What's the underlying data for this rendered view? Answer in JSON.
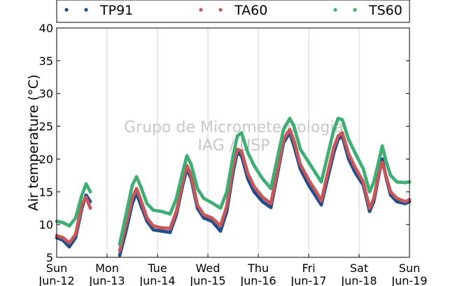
{
  "chart_data": {
    "type": "scatter",
    "title": "",
    "xlabel": "",
    "ylabel": "Air temperature (°C)",
    "ylim": [
      5,
      40
    ],
    "yticks": [
      5,
      10,
      15,
      20,
      25,
      30,
      35,
      40
    ],
    "xlim": [
      "2016-06-12T00:00",
      "2016-06-19T00:00"
    ],
    "xtick_labels": [
      {
        "top": "Sun",
        "bottom": "Jun-12"
      },
      {
        "top": "Mon",
        "bottom": "Jun-13"
      },
      {
        "top": "Tue",
        "bottom": "Jun-14"
      },
      {
        "top": "Wed",
        "bottom": "Jun-15"
      },
      {
        "top": "Thu",
        "bottom": "Jun-16"
      },
      {
        "top": "Fri",
        "bottom": "Jun-17"
      },
      {
        "top": "Sat",
        "bottom": "Jun-18"
      },
      {
        "top": "Sun",
        "bottom": "Jun-19"
      }
    ],
    "grid": {
      "vertical": true,
      "horizontal": false
    },
    "legend": {
      "placement": "top",
      "columns": 3
    },
    "watermark": {
      "line1": "Grupo de Micrometeorologia",
      "line2": "IAG / USP"
    },
    "series": [
      {
        "name": "TP91",
        "color": "#1f4e8c",
        "points": [
          [
            "2016-06-12T00:00",
            8.0
          ],
          [
            "2016-06-12T03:00",
            7.6
          ],
          [
            "2016-06-12T06:00",
            6.6
          ],
          [
            "2016-06-12T09:00",
            8.0
          ],
          [
            "2016-06-12T12:00",
            12.5
          ],
          [
            "2016-06-12T14:00",
            14.5
          ],
          [
            "2016-06-12T16:00",
            13.5
          ],
          [
            "2016-06-13T06:00",
            5.3
          ],
          [
            "2016-06-13T09:00",
            9.0
          ],
          [
            "2016-06-13T12:00",
            13.2
          ],
          [
            "2016-06-13T14:00",
            14.8
          ],
          [
            "2016-06-13T16:00",
            13.0
          ],
          [
            "2016-06-13T19:00",
            10.5
          ],
          [
            "2016-06-13T22:00",
            9.2
          ],
          [
            "2016-06-14T02:00",
            9.0
          ],
          [
            "2016-06-14T06:00",
            8.8
          ],
          [
            "2016-06-14T09:00",
            11.5
          ],
          [
            "2016-06-14T12:00",
            16.0
          ],
          [
            "2016-06-14T14:00",
            18.5
          ],
          [
            "2016-06-14T16:00",
            17.0
          ],
          [
            "2016-06-14T19:00",
            12.5
          ],
          [
            "2016-06-14T22:00",
            11.0
          ],
          [
            "2016-06-15T02:00",
            10.5
          ],
          [
            "2016-06-15T06:00",
            9.0
          ],
          [
            "2016-06-15T09:00",
            12.0
          ],
          [
            "2016-06-15T12:00",
            18.0
          ],
          [
            "2016-06-15T14:00",
            21.0
          ],
          [
            "2016-06-15T16:00",
            20.5
          ],
          [
            "2016-06-15T19:00",
            17.0
          ],
          [
            "2016-06-15T22:00",
            15.0
          ],
          [
            "2016-06-16T02:00",
            13.5
          ],
          [
            "2016-06-16T06:00",
            12.6
          ],
          [
            "2016-06-16T09:00",
            17.5
          ],
          [
            "2016-06-16T12:00",
            22.5
          ],
          [
            "2016-06-16T15:00",
            24.0
          ],
          [
            "2016-06-16T17:00",
            22.0
          ],
          [
            "2016-06-16T20:00",
            18.5
          ],
          [
            "2016-06-17T00:00",
            16.0
          ],
          [
            "2016-06-17T04:00",
            14.0
          ],
          [
            "2016-06-17T06:00",
            13.0
          ],
          [
            "2016-06-17T09:00",
            17.0
          ],
          [
            "2016-06-17T12:00",
            21.0
          ],
          [
            "2016-06-17T14:00",
            23.0
          ],
          [
            "2016-06-17T16:00",
            23.5
          ],
          [
            "2016-06-17T19:00",
            20.0
          ],
          [
            "2016-06-17T22:00",
            18.0
          ],
          [
            "2016-06-18T02:00",
            16.0
          ],
          [
            "2016-06-18T05:00",
            12.0
          ],
          [
            "2016-06-18T07:00",
            13.5
          ],
          [
            "2016-06-18T10:00",
            18.5
          ],
          [
            "2016-06-18T11:00",
            20.0
          ],
          [
            "2016-06-18T13:00",
            17.0
          ],
          [
            "2016-06-18T15:00",
            14.5
          ],
          [
            "2016-06-18T18:00",
            13.5
          ],
          [
            "2016-06-18T22:00",
            13.2
          ],
          [
            "2016-06-19T00:00",
            13.5
          ]
        ]
      },
      {
        "name": "TA60",
        "color": "#c8575a",
        "points": [
          [
            "2016-06-12T00:00",
            8.3
          ],
          [
            "2016-06-12T03:00",
            8.0
          ],
          [
            "2016-06-12T06:00",
            7.2
          ],
          [
            "2016-06-12T09:00",
            8.5
          ],
          [
            "2016-06-12T12:00",
            13.0
          ],
          [
            "2016-06-12T14:00",
            14.2
          ],
          [
            "2016-06-12T16:00",
            12.5
          ],
          [
            "2016-06-13T06:00",
            6.0
          ],
          [
            "2016-06-13T09:00",
            10.0
          ],
          [
            "2016-06-13T12:00",
            14.0
          ],
          [
            "2016-06-13T14:00",
            15.5
          ],
          [
            "2016-06-13T16:00",
            13.8
          ],
          [
            "2016-06-13T19:00",
            11.0
          ],
          [
            "2016-06-13T22:00",
            9.8
          ],
          [
            "2016-06-14T02:00",
            9.5
          ],
          [
            "2016-06-14T06:00",
            9.4
          ],
          [
            "2016-06-14T09:00",
            12.0
          ],
          [
            "2016-06-14T12:00",
            16.5
          ],
          [
            "2016-06-14T14:00",
            19.0
          ],
          [
            "2016-06-14T16:00",
            17.5
          ],
          [
            "2016-06-14T19:00",
            13.0
          ],
          [
            "2016-06-14T22:00",
            11.5
          ],
          [
            "2016-06-15T02:00",
            11.0
          ],
          [
            "2016-06-15T06:00",
            9.8
          ],
          [
            "2016-06-15T09:00",
            12.8
          ],
          [
            "2016-06-15T12:00",
            18.8
          ],
          [
            "2016-06-15T14:00",
            21.5
          ],
          [
            "2016-06-15T16:00",
            21.2
          ],
          [
            "2016-06-15T19:00",
            17.8
          ],
          [
            "2016-06-15T22:00",
            15.8
          ],
          [
            "2016-06-16T02:00",
            14.2
          ],
          [
            "2016-06-16T06:00",
            13.2
          ],
          [
            "2016-06-16T09:00",
            18.0
          ],
          [
            "2016-06-16T12:00",
            23.0
          ],
          [
            "2016-06-16T15:00",
            24.5
          ],
          [
            "2016-06-16T17:00",
            22.8
          ],
          [
            "2016-06-16T20:00",
            19.2
          ],
          [
            "2016-06-17T00:00",
            16.8
          ],
          [
            "2016-06-17T04:00",
            14.8
          ],
          [
            "2016-06-17T06:00",
            13.6
          ],
          [
            "2016-06-17T09:00",
            17.8
          ],
          [
            "2016-06-17T12:00",
            21.8
          ],
          [
            "2016-06-17T14:00",
            23.5
          ],
          [
            "2016-06-17T16:00",
            24.0
          ],
          [
            "2016-06-17T19:00",
            20.8
          ],
          [
            "2016-06-17T22:00",
            18.8
          ],
          [
            "2016-06-18T02:00",
            16.5
          ],
          [
            "2016-06-18T05:00",
            12.5
          ],
          [
            "2016-06-18T07:00",
            14.0
          ],
          [
            "2016-06-18T10:00",
            18.8
          ],
          [
            "2016-06-18T11:00",
            19.5
          ],
          [
            "2016-06-18T13:00",
            17.2
          ],
          [
            "2016-06-18T15:00",
            15.0
          ],
          [
            "2016-06-18T18:00",
            14.0
          ],
          [
            "2016-06-18T22:00",
            13.5
          ],
          [
            "2016-06-19T00:00",
            13.8
          ]
        ]
      },
      {
        "name": "TS60",
        "color": "#3fae73",
        "points": [
          [
            "2016-06-12T00:00",
            10.5
          ],
          [
            "2016-06-12T03:00",
            10.3
          ],
          [
            "2016-06-12T06:00",
            9.8
          ],
          [
            "2016-06-12T09:00",
            11.0
          ],
          [
            "2016-06-12T12:00",
            14.5
          ],
          [
            "2016-06-12T14:00",
            16.2
          ],
          [
            "2016-06-12T16:00",
            15.0
          ],
          [
            "2016-06-13T06:00",
            7.0
          ],
          [
            "2016-06-13T09:00",
            11.5
          ],
          [
            "2016-06-13T12:00",
            16.0
          ],
          [
            "2016-06-13T14:00",
            17.3
          ],
          [
            "2016-06-13T16:00",
            15.8
          ],
          [
            "2016-06-13T19:00",
            13.2
          ],
          [
            "2016-06-13T22:00",
            12.2
          ],
          [
            "2016-06-14T02:00",
            12.0
          ],
          [
            "2016-06-14T06:00",
            11.6
          ],
          [
            "2016-06-14T09:00",
            14.0
          ],
          [
            "2016-06-14T12:00",
            18.0
          ],
          [
            "2016-06-14T14:00",
            20.5
          ],
          [
            "2016-06-14T16:00",
            19.2
          ],
          [
            "2016-06-14T19:00",
            15.5
          ],
          [
            "2016-06-14T22:00",
            14.0
          ],
          [
            "2016-06-15T02:00",
            13.3
          ],
          [
            "2016-06-15T06:00",
            12.5
          ],
          [
            "2016-06-15T09:00",
            15.0
          ],
          [
            "2016-06-15T12:00",
            20.5
          ],
          [
            "2016-06-15T14:00",
            23.5
          ],
          [
            "2016-06-15T16:00",
            24.0
          ],
          [
            "2016-06-15T19:00",
            21.0
          ],
          [
            "2016-06-15T22:00",
            19.0
          ],
          [
            "2016-06-16T02:00",
            17.0
          ],
          [
            "2016-06-16T06:00",
            15.5
          ],
          [
            "2016-06-16T09:00",
            20.0
          ],
          [
            "2016-06-16T12:00",
            24.5
          ],
          [
            "2016-06-16T15:00",
            26.2
          ],
          [
            "2016-06-16T17:00",
            25.0
          ],
          [
            "2016-06-16T20:00",
            21.5
          ],
          [
            "2016-06-17T00:00",
            19.5
          ],
          [
            "2016-06-17T04:00",
            17.5
          ],
          [
            "2016-06-17T06:00",
            16.5
          ],
          [
            "2016-06-17T09:00",
            20.5
          ],
          [
            "2016-06-17T12:00",
            24.5
          ],
          [
            "2016-06-17T14:00",
            26.2
          ],
          [
            "2016-06-17T16:00",
            26.0
          ],
          [
            "2016-06-17T19:00",
            23.0
          ],
          [
            "2016-06-17T22:00",
            21.0
          ],
          [
            "2016-06-18T02:00",
            18.5
          ],
          [
            "2016-06-18T05:00",
            15.0
          ],
          [
            "2016-06-18T07:00",
            16.5
          ],
          [
            "2016-06-18T10:00",
            20.5
          ],
          [
            "2016-06-18T11:00",
            22.0
          ],
          [
            "2016-06-18T13:00",
            19.5
          ],
          [
            "2016-06-18T15:00",
            17.5
          ],
          [
            "2016-06-18T18:00",
            16.5
          ],
          [
            "2016-06-18T22:00",
            16.4
          ],
          [
            "2016-06-19T00:00",
            16.5
          ]
        ]
      }
    ]
  }
}
